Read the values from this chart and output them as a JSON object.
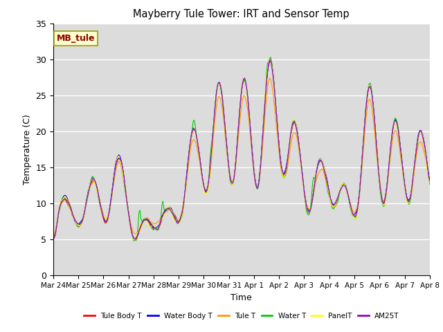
{
  "title": "Mayberry Tule Tower: IRT and Sensor Temp",
  "xlabel": "Time",
  "ylabel": "Temperature (C)",
  "ylim": [
    0,
    35
  ],
  "yticks": [
    0,
    5,
    10,
    15,
    20,
    25,
    30,
    35
  ],
  "series": [
    {
      "label": "Tule Body T",
      "color": "#ff0000"
    },
    {
      "label": "Water Body T",
      "color": "#0000ff"
    },
    {
      "label": "Tule T",
      "color": "#ff9900"
    },
    {
      "label": "Water T",
      "color": "#00cc00"
    },
    {
      "label": "PanelT",
      "color": "#ffff00"
    },
    {
      "label": "AM25T",
      "color": "#9900cc"
    }
  ],
  "annotation_text": "MB_tule",
  "bg_color": "#dcdcdc",
  "fig_bg": "#ffffff",
  "grid_color": "#ffffff",
  "day_peaks": [
    10.2,
    13.5,
    16.5,
    7.5,
    9.5,
    20.5,
    27.0,
    27.5,
    29.8,
    21.5,
    15.8,
    12.8,
    26.5,
    21.5,
    20.0,
    19.5
  ],
  "day_troughs": [
    7.5,
    7.5,
    7.5,
    5.3,
    6.5,
    9.0,
    12.0,
    12.5,
    12.0,
    13.5,
    8.5,
    9.5,
    10.0,
    9.5,
    10.0,
    10.5
  ]
}
